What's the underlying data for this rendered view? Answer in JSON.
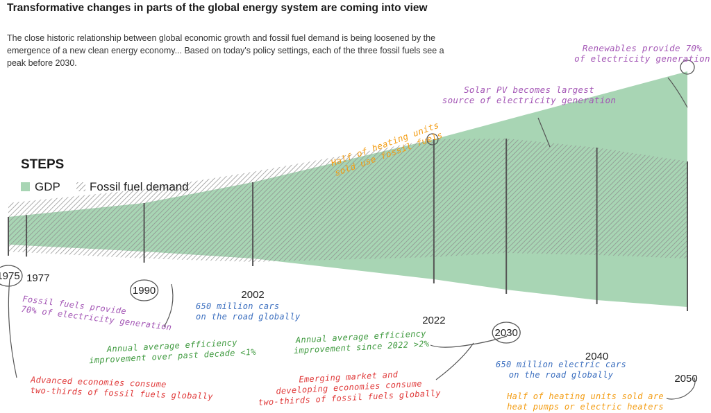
{
  "title": "Transformative changes in parts of the global energy system are coming into view",
  "subtitle_lines": [
    "The close historic relationship between global economic growth and fossil fuel demand is being loosened by the",
    "emergence of a new clean energy economy... Based on today's policy settings, each of the three fossil fuels see a",
    "peak before 2030."
  ],
  "colors": {
    "gdp": "#a8d5b4",
    "hatch": "#8c8c8c",
    "purple": "#a355b5",
    "green": "#3f9a3f",
    "blue": "#3c6fbf",
    "red": "#e03a3a",
    "orange": "#f39c12",
    "line": "#555555"
  },
  "chart_data": {
    "type": "area",
    "title": "STEPS",
    "legend": [
      {
        "name": "GDP",
        "style": "solid-green"
      },
      {
        "name": "Fossil fuel demand",
        "style": "hatched-grey"
      }
    ],
    "x_range": [
      1975,
      2050
    ],
    "y_range": [
      -1.2,
      2.6
    ],
    "series": [
      {
        "name": "GDP",
        "x": [
          1975,
          1990,
          2002,
          2022,
          2030,
          2040,
          2050
        ],
        "upper": [
          0.2,
          0.4,
          0.7,
          1.32,
          1.6,
          1.95,
          2.3
        ],
        "lower": [
          -0.2,
          -0.3,
          -0.4,
          -0.7,
          -0.85,
          -1.0,
          -1.1
        ]
      },
      {
        "name": "Fossil fuel demand",
        "x": [
          1975,
          1990,
          2002,
          2022,
          2030,
          2040,
          2050
        ],
        "upper": [
          0.4,
          0.6,
          0.85,
          1.32,
          1.33,
          1.2,
          1.0
        ],
        "lower": [
          -0.3,
          -0.4,
          -0.45,
          -0.38,
          -0.32,
          -0.35,
          -0.4
        ]
      }
    ],
    "year_markers": [
      {
        "year": 1975,
        "label": "1975",
        "circled": true
      },
      {
        "year": 1977,
        "label": "1977",
        "circled": false
      },
      {
        "year": 1990,
        "label": "1990",
        "circled": true
      },
      {
        "year": 2002,
        "label": "2002",
        "circled": false
      },
      {
        "year": 2022,
        "label": "2022",
        "circled": false
      },
      {
        "year": 2030,
        "label": "2030",
        "circled": true
      },
      {
        "year": 2040,
        "label": "2040",
        "circled": false
      },
      {
        "year": 2050,
        "label": "2050",
        "circled": false
      }
    ],
    "annotations": [
      {
        "id": "renewables",
        "year": 2050,
        "color": "purple",
        "lines": [
          "Renewables provide 70%",
          "of electricity generation"
        ]
      },
      {
        "id": "solar",
        "year": 2040,
        "color": "purple",
        "lines": [
          "Solar PV becomes largest",
          "source of electricity generation"
        ]
      },
      {
        "id": "heating_half",
        "year": 2022,
        "color": "orange",
        "lines": [
          "Half of heating units",
          "sold use fossil fuels"
        ]
      },
      {
        "id": "fossil_elec",
        "year": 1977,
        "color": "purple",
        "lines": [
          "Fossil fuels provide",
          "70% of electricity generation"
        ]
      },
      {
        "id": "cars_650m",
        "year": 2002,
        "color": "blue",
        "lines": [
          "650 million cars",
          "on the road globally"
        ]
      },
      {
        "id": "eff_past",
        "year": 1990,
        "color": "green",
        "lines": [
          "Annual average efficiency",
          "improvement over past decade <1%"
        ]
      },
      {
        "id": "eff_since",
        "year": 2022,
        "color": "green",
        "lines": [
          "Annual average efficiency",
          "improvement since 2022 >2%"
        ]
      },
      {
        "id": "ev_650m",
        "year": 2030,
        "color": "blue",
        "lines": [
          "650 million electric cars",
          "on the road globally"
        ]
      },
      {
        "id": "advanced",
        "year": 1975,
        "color": "red",
        "lines": [
          "Advanced economies consume",
          "two-thirds of fossil fuels globally"
        ]
      },
      {
        "id": "emerging",
        "year": 2030,
        "color": "red",
        "lines": [
          "Emerging market and",
          "developing economies consume",
          "two-thirds of fossil fuels globally"
        ]
      },
      {
        "id": "heatpumps",
        "year": 2050,
        "color": "orange",
        "lines": [
          "Half of heating units sold are",
          "heat pumps or electric heaters"
        ]
      }
    ]
  }
}
